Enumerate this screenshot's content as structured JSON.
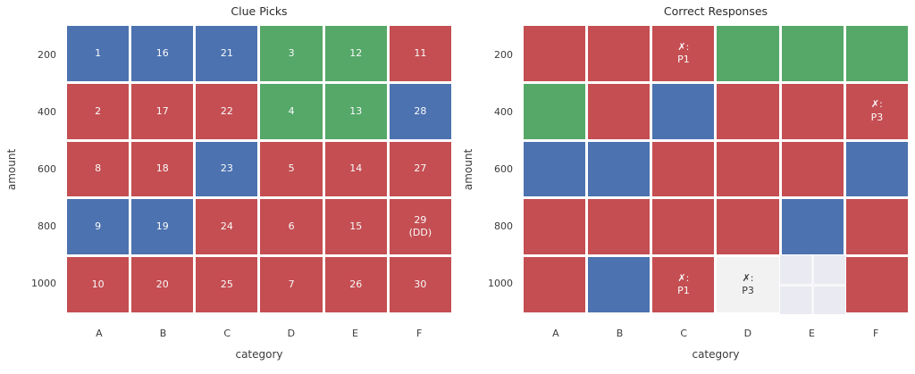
{
  "palette": {
    "blue": "#4C72B0",
    "red": "#C44E52",
    "green": "#55A868",
    "light": "#F2F2F2",
    "empty_bg": "#EAEAF2",
    "grid_line": "#F7F7FA",
    "text_on_dark": "#FAFAFA",
    "text_on_light": "#3A3A3A",
    "axis_text": "#3B3B3B",
    "figure_bg": "#FFFFFF"
  },
  "chart_data": [
    {
      "type": "heatmap",
      "title": "Clue Picks",
      "xlabel": "category",
      "ylabel": "amount",
      "x_ticks": [
        "A",
        "B",
        "C",
        "D",
        "E",
        "F"
      ],
      "y_ticks": [
        "200",
        "400",
        "600",
        "800",
        "1000"
      ],
      "rows": [
        {
          "y": "200",
          "cells": [
            {
              "text": "1",
              "color": "blue"
            },
            {
              "text": "16",
              "color": "blue"
            },
            {
              "text": "21",
              "color": "blue"
            },
            {
              "text": "3",
              "color": "green"
            },
            {
              "text": "12",
              "color": "green"
            },
            {
              "text": "11",
              "color": "red"
            }
          ]
        },
        {
          "y": "400",
          "cells": [
            {
              "text": "2",
              "color": "red"
            },
            {
              "text": "17",
              "color": "red"
            },
            {
              "text": "22",
              "color": "red"
            },
            {
              "text": "4",
              "color": "green"
            },
            {
              "text": "13",
              "color": "green"
            },
            {
              "text": "28",
              "color": "blue"
            }
          ]
        },
        {
          "y": "600",
          "cells": [
            {
              "text": "8",
              "color": "red"
            },
            {
              "text": "18",
              "color": "red"
            },
            {
              "text": "23",
              "color": "blue"
            },
            {
              "text": "5",
              "color": "red"
            },
            {
              "text": "14",
              "color": "red"
            },
            {
              "text": "27",
              "color": "red"
            }
          ]
        },
        {
          "y": "800",
          "cells": [
            {
              "text": "9",
              "color": "blue"
            },
            {
              "text": "19",
              "color": "blue"
            },
            {
              "text": "24",
              "color": "red"
            },
            {
              "text": "6",
              "color": "red"
            },
            {
              "text": "15",
              "color": "red"
            },
            {
              "text": "29\n(DD)",
              "color": "red"
            }
          ]
        },
        {
          "y": "1000",
          "cells": [
            {
              "text": "10",
              "color": "red"
            },
            {
              "text": "20",
              "color": "red"
            },
            {
              "text": "25",
              "color": "red"
            },
            {
              "text": "7",
              "color": "red"
            },
            {
              "text": "26",
              "color": "red"
            },
            {
              "text": "30",
              "color": "red"
            }
          ]
        }
      ]
    },
    {
      "type": "heatmap",
      "title": "Correct Responses",
      "xlabel": "category",
      "ylabel": "amount",
      "x_ticks": [
        "A",
        "B",
        "C",
        "D",
        "E",
        "F"
      ],
      "y_ticks": [
        "200",
        "400",
        "600",
        "800",
        "1000"
      ],
      "rows": [
        {
          "y": "200",
          "cells": [
            {
              "text": "",
              "color": "red"
            },
            {
              "text": "",
              "color": "red"
            },
            {
              "text": "✗:\nP1",
              "color": "red"
            },
            {
              "text": "",
              "color": "green"
            },
            {
              "text": "",
              "color": "green"
            },
            {
              "text": "",
              "color": "green"
            }
          ]
        },
        {
          "y": "400",
          "cells": [
            {
              "text": "",
              "color": "green"
            },
            {
              "text": "",
              "color": "red"
            },
            {
              "text": "",
              "color": "blue"
            },
            {
              "text": "",
              "color": "red"
            },
            {
              "text": "",
              "color": "red"
            },
            {
              "text": "✗:\nP3",
              "color": "red"
            }
          ]
        },
        {
          "y": "600",
          "cells": [
            {
              "text": "",
              "color": "blue"
            },
            {
              "text": "",
              "color": "blue"
            },
            {
              "text": "",
              "color": "red"
            },
            {
              "text": "",
              "color": "red"
            },
            {
              "text": "",
              "color": "red"
            },
            {
              "text": "",
              "color": "blue"
            }
          ]
        },
        {
          "y": "800",
          "cells": [
            {
              "text": "",
              "color": "red"
            },
            {
              "text": "",
              "color": "red"
            },
            {
              "text": "",
              "color": "red"
            },
            {
              "text": "",
              "color": "red"
            },
            {
              "text": "",
              "color": "blue"
            },
            {
              "text": "",
              "color": "red"
            }
          ]
        },
        {
          "y": "1000",
          "cells": [
            {
              "text": "",
              "color": "red"
            },
            {
              "text": "",
              "color": "blue"
            },
            {
              "text": "✗:\nP1",
              "color": "red"
            },
            {
              "text": "✗:\nP3",
              "color": "light"
            },
            {
              "text": "",
              "color": "empty"
            },
            {
              "text": "",
              "color": "red"
            }
          ]
        }
      ]
    }
  ]
}
